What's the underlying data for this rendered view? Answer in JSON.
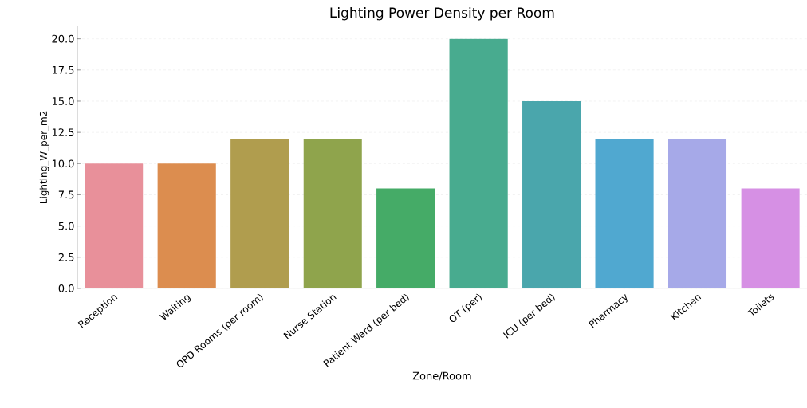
{
  "chart_data": {
    "type": "bar",
    "title": "Lighting Power Density per Room",
    "xlabel": "Zone/Room",
    "ylabel": "Lighting_W_per_m2",
    "categories": [
      "Reception",
      "Waiting",
      "OPD Rooms (per room)",
      "Nurse Station",
      "Patient Ward (per bed)",
      "OT (per)",
      "ICU (per bed)",
      "Pharmacy",
      "Kitchen",
      "Toilets"
    ],
    "values": [
      10,
      10,
      12,
      12,
      8,
      20,
      15,
      12,
      12,
      8
    ],
    "colors": [
      "#e8909a",
      "#dc8d4f",
      "#b09d4e",
      "#8fa44c",
      "#45ab67",
      "#48ab8f",
      "#4aa6ac",
      "#50a8d0",
      "#a6a9e8",
      "#d690e4"
    ],
    "ylim": [
      0,
      21
    ],
    "yticks": [
      {
        "value": 0,
        "label": "0.0"
      },
      {
        "value": 2.5,
        "label": "2.5"
      },
      {
        "value": 5,
        "label": "5.0"
      },
      {
        "value": 7.5,
        "label": "7.5"
      },
      {
        "value": 10,
        "label": "10.0"
      },
      {
        "value": 12.5,
        "label": "12.5"
      },
      {
        "value": 15,
        "label": "15.0"
      },
      {
        "value": 17.5,
        "label": "17.5"
      },
      {
        "value": 20,
        "label": "20.0"
      }
    ],
    "grid": "y"
  }
}
